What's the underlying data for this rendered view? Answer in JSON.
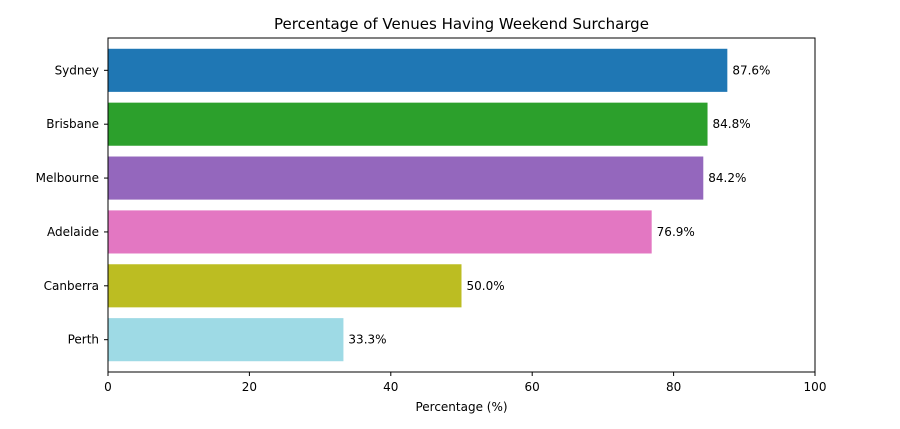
{
  "chart_data": {
    "type": "bar",
    "orientation": "horizontal",
    "title": "Percentage of Venues Having Weekend Surcharge",
    "xlabel": "Percentage (%)",
    "ylabel": "",
    "xlim": [
      0,
      100
    ],
    "xticks": [
      0,
      20,
      40,
      60,
      80,
      100
    ],
    "grid": false,
    "categories": [
      "Sydney",
      "Brisbane",
      "Melbourne",
      "Adelaide",
      "Canberra",
      "Perth"
    ],
    "values": [
      87.6,
      84.8,
      84.2,
      76.9,
      50.0,
      33.3
    ],
    "value_labels": [
      "87.6%",
      "84.8%",
      "84.2%",
      "76.9%",
      "50.0%",
      "33.3%"
    ],
    "colors": [
      "#1f77b4",
      "#2ca02c",
      "#9467bd",
      "#e377c2",
      "#bcbd22",
      "#9edae5"
    ]
  }
}
